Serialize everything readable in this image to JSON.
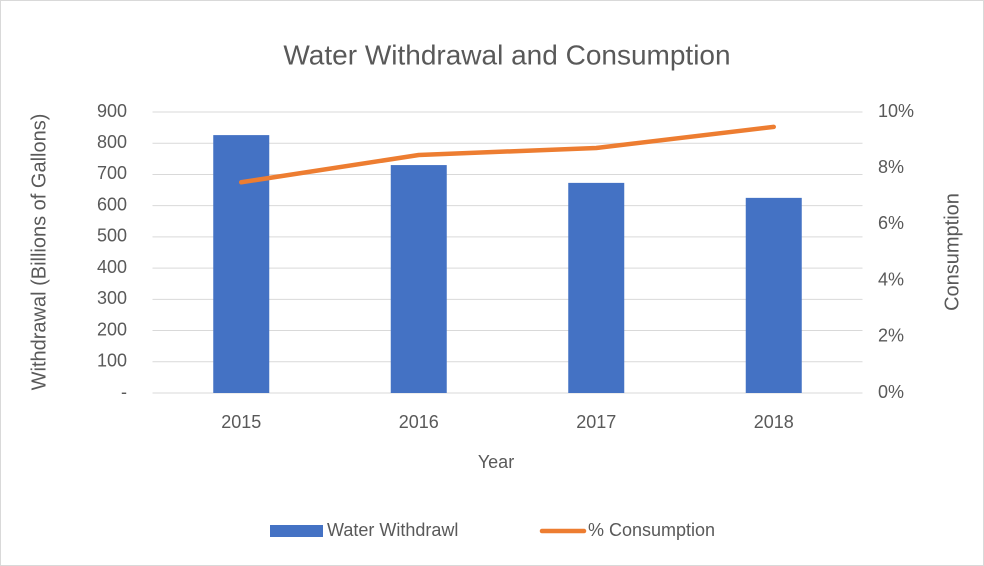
{
  "chart_data": {
    "type": "bar_line",
    "title": "Water Withdrawal and Consumption",
    "x_label": "Year",
    "y_label": "Withdrawal (Billions of Gallons)",
    "y2_label": "Consumption",
    "categories": [
      "2015",
      "2016",
      "2017",
      "2018"
    ],
    "series": [
      {
        "name": "Water Withdrawl",
        "type": "bar",
        "color": "#4472c4",
        "values": [
          826,
          730,
          673,
          625
        ]
      },
      {
        "name": "% Consumption",
        "type": "line",
        "axis": "y2",
        "color": "#ed7d31",
        "values": [
          7.5,
          8.47,
          8.72,
          9.47
        ]
      }
    ],
    "ylim": [
      0,
      900
    ],
    "yticks": [
      {
        "value": 0,
        "label": "-"
      },
      100,
      200,
      300,
      400,
      500,
      600,
      700,
      800,
      900
    ],
    "y2lim": [
      0,
      10
    ],
    "y2ticks": [
      {
        "value": 0,
        "label": "0%"
      },
      {
        "value": 2,
        "label": "2%"
      },
      {
        "value": 4,
        "label": "4%"
      },
      {
        "value": 6,
        "label": "6%"
      },
      {
        "value": 8,
        "label": "8%"
      },
      {
        "value": 10,
        "label": "10%"
      }
    ],
    "grid": true,
    "legend": "bottom"
  }
}
